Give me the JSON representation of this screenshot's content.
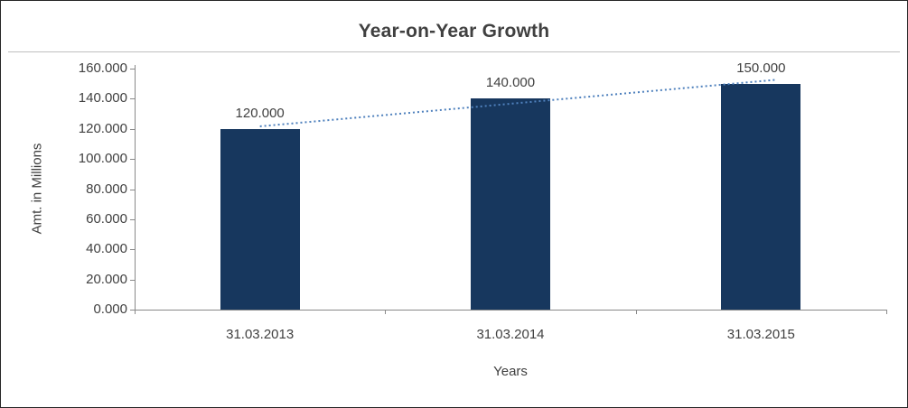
{
  "chart_data": {
    "type": "bar",
    "title": "Year-on-Year Growth",
    "categories": [
      "31.03.2013",
      "31.03.2014",
      "31.03.2015"
    ],
    "values": [
      120,
      140,
      150
    ],
    "value_labels": [
      "120.000",
      "140.000",
      "150.000"
    ],
    "xlabel": "Years",
    "ylabel": "Amt. in Millions",
    "ylim": [
      0,
      160
    ],
    "ytick_step": 20,
    "ytick_labels": [
      "0.000",
      "20.000",
      "40.000",
      "60.000",
      "80.000",
      "100.000",
      "120.000",
      "140.000",
      "160.000"
    ],
    "grid": false,
    "legend": false,
    "trendline": {
      "type": "linear",
      "style": "dotted"
    },
    "colors": {
      "bar": "#17375e",
      "trendline": "#4f81bd",
      "axis": "#898989",
      "text": "#404040"
    }
  }
}
